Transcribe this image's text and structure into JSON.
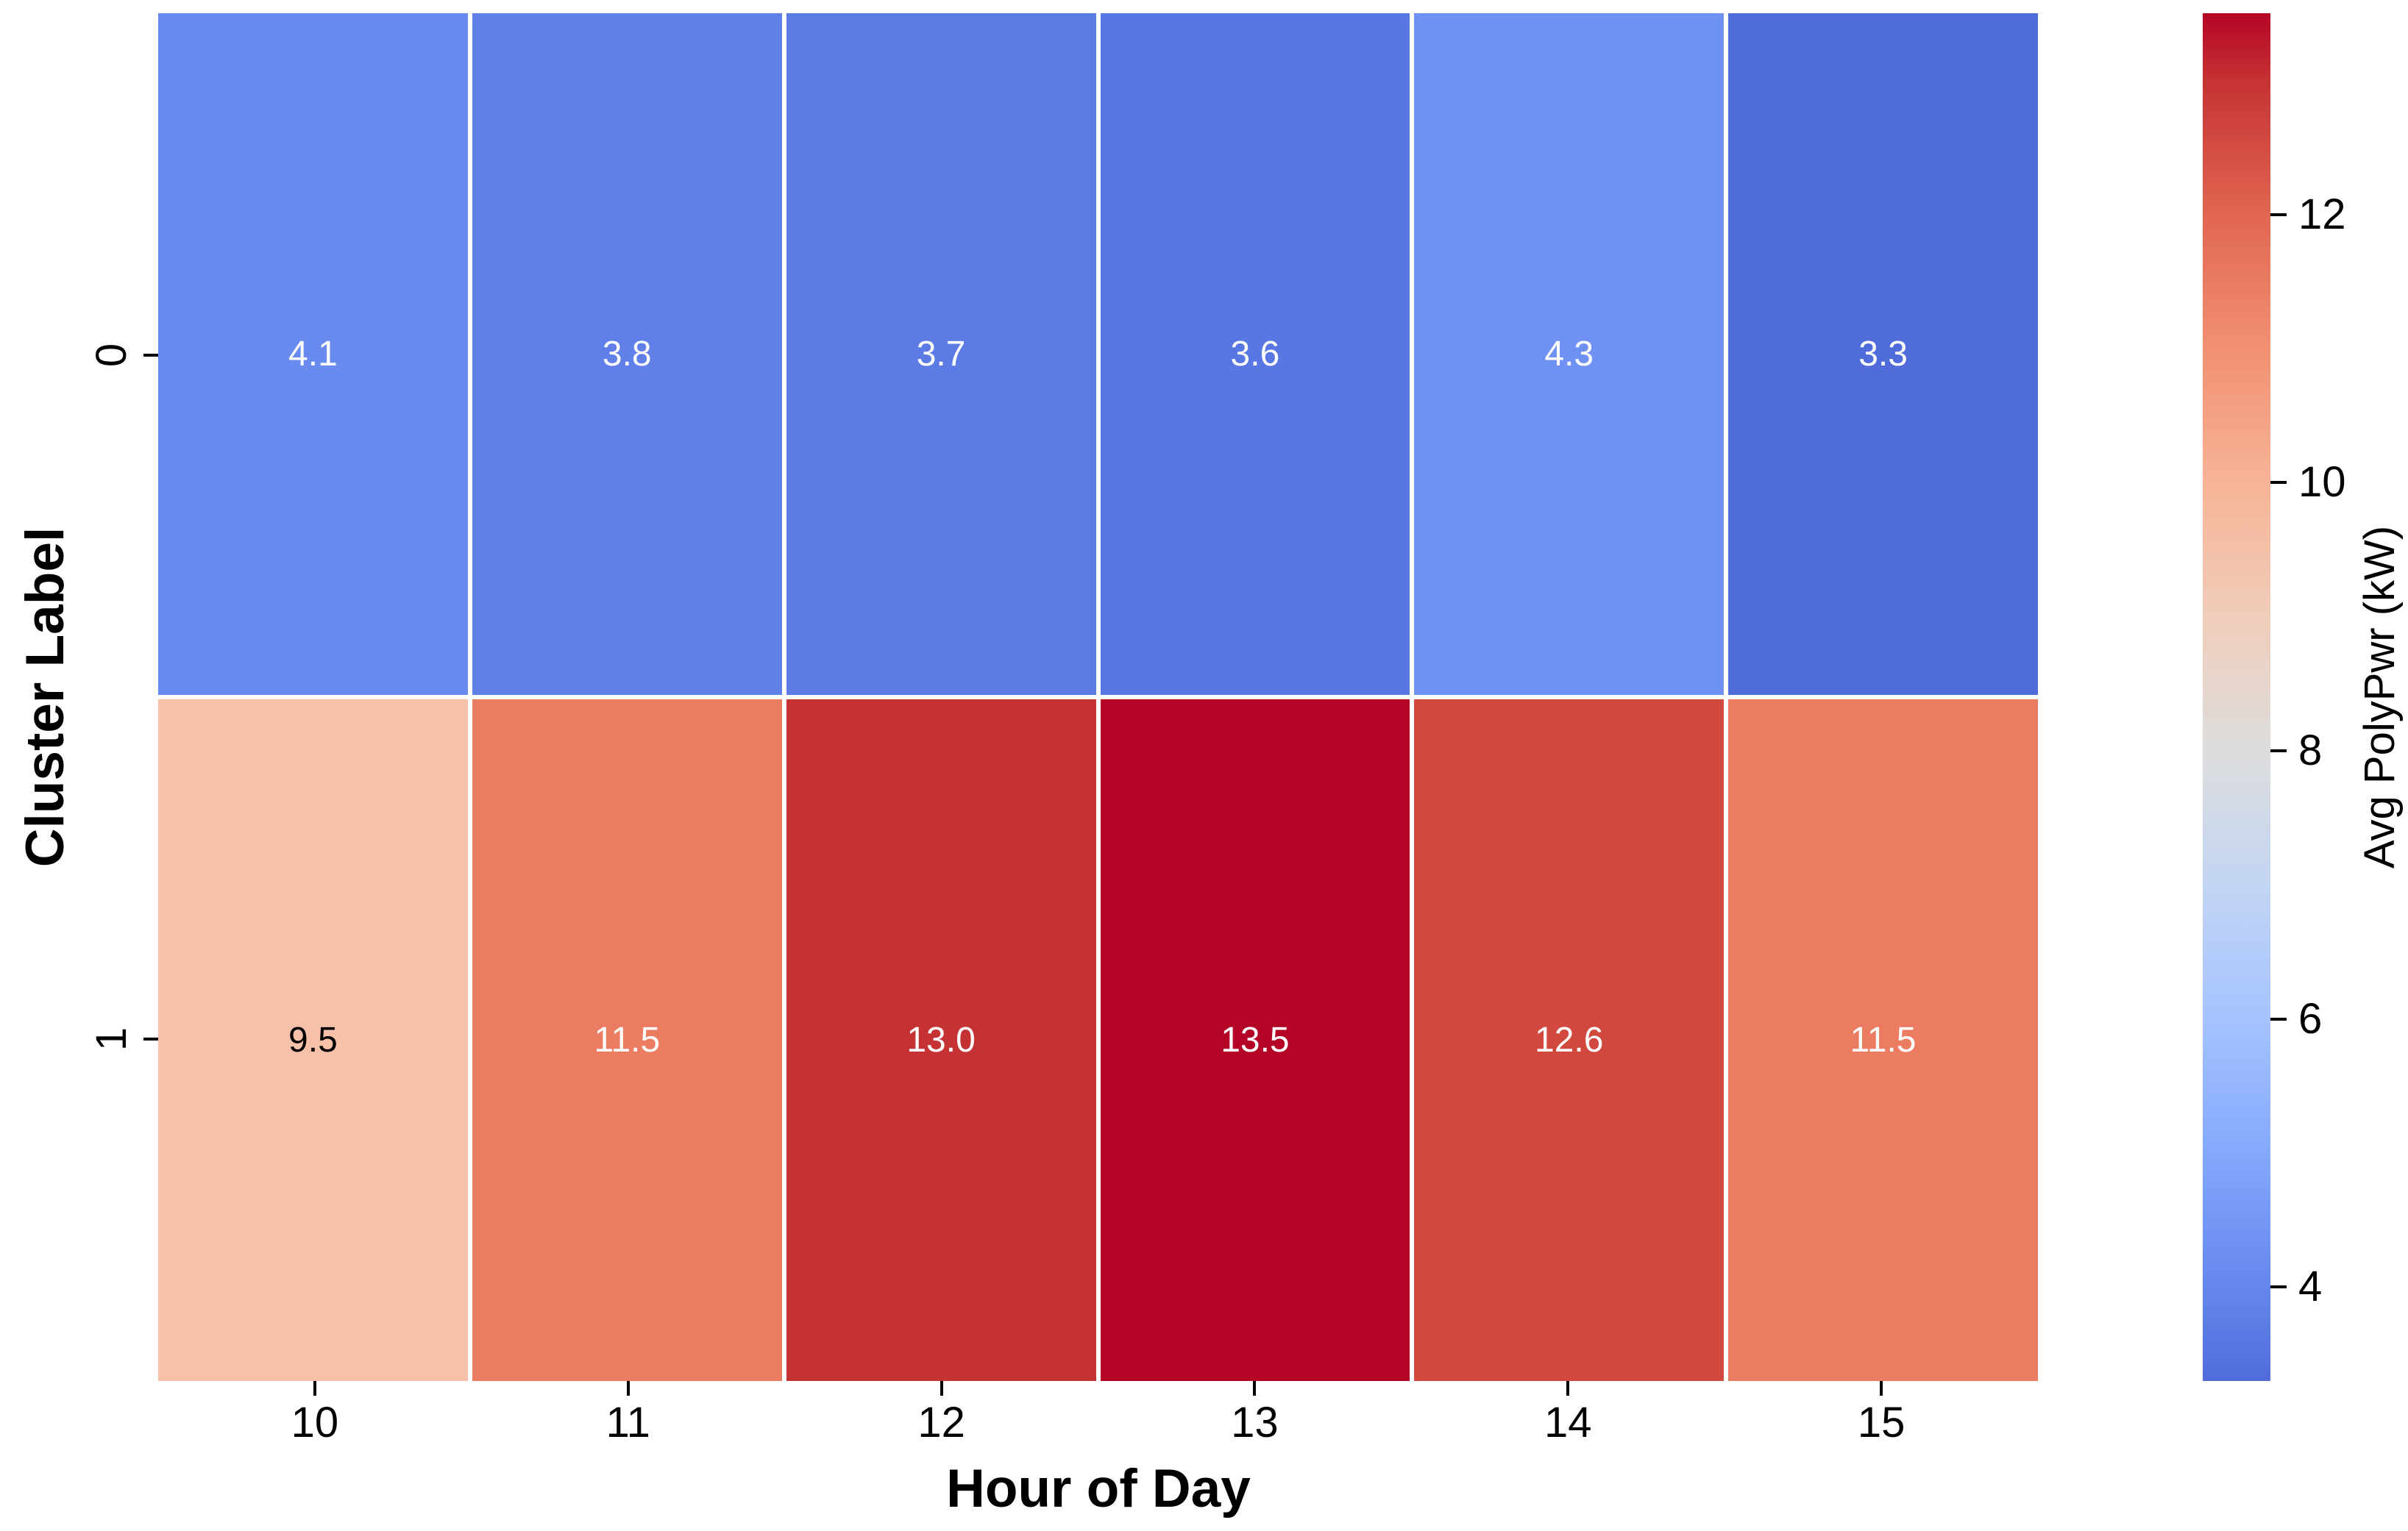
{
  "chart_data": {
    "type": "heatmap",
    "xlabel": "Hour of Day",
    "ylabel": "Cluster Label",
    "colorbar_label": "Avg PolyPwr (kW)",
    "x_categories": [
      "10",
      "11",
      "12",
      "13",
      "14",
      "15"
    ],
    "y_categories": [
      "0",
      "1"
    ],
    "values": [
      [
        4.1,
        3.8,
        3.7,
        3.6,
        4.3,
        3.3
      ],
      [
        9.5,
        11.5,
        13.0,
        13.5,
        12.6,
        11.5
      ]
    ],
    "annotations": [
      [
        "4.1",
        "3.8",
        "3.7",
        "3.6",
        "4.3",
        "3.3"
      ],
      [
        "9.5",
        "11.5",
        "13.0",
        "13.5",
        "12.6",
        "11.5"
      ]
    ],
    "cell_colors": [
      [
        "#698aef",
        "#607fe8",
        "#5c7be5",
        "#5977e3",
        "#6f91f3",
        "#506cda"
      ],
      [
        "#f6c1a8",
        "#eb7c61",
        "#c53233",
        "#b40426",
        "#d1493e",
        "#eb7c61"
      ]
    ],
    "annot_text_colors": [
      [
        "#ffffff",
        "#ffffff",
        "#ffffff",
        "#ffffff",
        "#ffffff",
        "#ffffff"
      ],
      [
        "#000000",
        "#ffffff",
        "#ffffff",
        "#ffffff",
        "#ffffff",
        "#ffffff"
      ]
    ],
    "vmin": 3.3,
    "vmax": 13.5,
    "colormap": "coolwarm",
    "grid_line_color": "#ffffff",
    "colorbar_ticks": [
      "12",
      "10",
      "8",
      "6",
      "4"
    ],
    "colorbar_tick_values": [
      12,
      10,
      8,
      6,
      4
    ],
    "colorbar_gradient_stops": [
      {
        "pct": 0,
        "color": "#506cda"
      },
      {
        "pct": 6.86,
        "color": "#6686ed"
      },
      {
        "pct": 16.67,
        "color": "#85a8fc"
      },
      {
        "pct": 26.47,
        "color": "#a5c3ff"
      },
      {
        "pct": 36.27,
        "color": "#c3d5f3"
      },
      {
        "pct": 46.08,
        "color": "#dddddd"
      },
      {
        "pct": 55.88,
        "color": "#f0cdba"
      },
      {
        "pct": 65.69,
        "color": "#f7b396"
      },
      {
        "pct": 75.49,
        "color": "#f29072"
      },
      {
        "pct": 85.29,
        "color": "#e16651"
      },
      {
        "pct": 95.1,
        "color": "#c53233"
      },
      {
        "pct": 100,
        "color": "#b40426"
      }
    ],
    "legend_position": "right",
    "grid": false
  }
}
